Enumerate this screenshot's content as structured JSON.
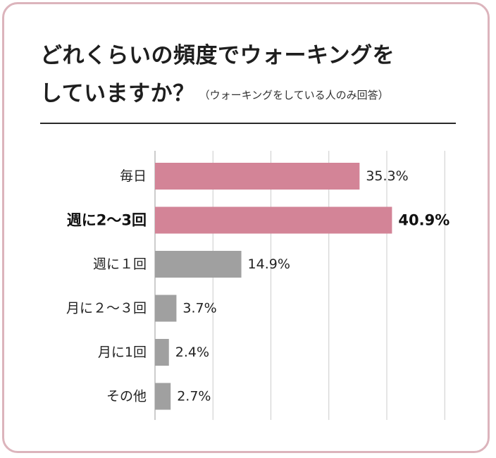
{
  "title": {
    "line1": "どれくらいの頻度でウォーキングを",
    "line2": "していますか？",
    "note": "（ウォーキングをしている人のみ回答）"
  },
  "colors": {
    "highlight": "#d38497",
    "other": "#a0a0a0",
    "grid": "#cccccc",
    "border": "#dcb4bc"
  },
  "chart_data": {
    "type": "bar",
    "orientation": "horizontal",
    "categories": [
      "毎日",
      "週に2〜3回",
      "週に１回",
      "月に２〜３回",
      "月に1回",
      "その他"
    ],
    "values": [
      35.3,
      40.9,
      14.9,
      3.7,
      2.4,
      2.7
    ],
    "value_labels": [
      "35.3%",
      "40.9%",
      "14.9%",
      "3.7%",
      "2.4%",
      "2.7%"
    ],
    "highlighted": [
      0,
      1
    ],
    "emphasized": [
      1
    ],
    "xlim": [
      0,
      50
    ],
    "grid": true
  }
}
